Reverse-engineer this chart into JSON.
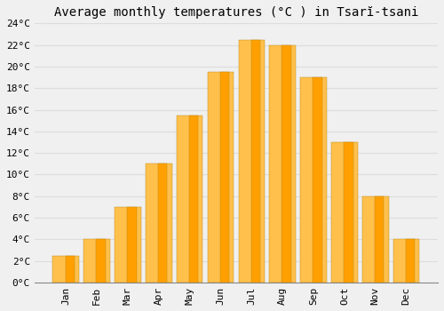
{
  "title": "Average monthly temperatures (°C ) in Tsarĭ-tsani",
  "months": [
    "Jan",
    "Feb",
    "Mar",
    "Apr",
    "May",
    "Jun",
    "Jul",
    "Aug",
    "Sep",
    "Oct",
    "Nov",
    "Dec"
  ],
  "values": [
    2.5,
    4.0,
    7.0,
    11.0,
    15.5,
    19.5,
    22.5,
    22.0,
    19.0,
    13.0,
    8.0,
    4.0
  ],
  "bar_color_light": "#FFC04C",
  "bar_color_dark": "#FFA000",
  "bar_edge_color": "#B8860B",
  "background_color": "#F0F0F0",
  "grid_color": "#DDDDDD",
  "ylim": [
    0,
    24
  ],
  "yticks": [
    0,
    2,
    4,
    6,
    8,
    10,
    12,
    14,
    16,
    18,
    20,
    22,
    24
  ],
  "title_fontsize": 10,
  "tick_fontsize": 8,
  "font_family": "monospace"
}
